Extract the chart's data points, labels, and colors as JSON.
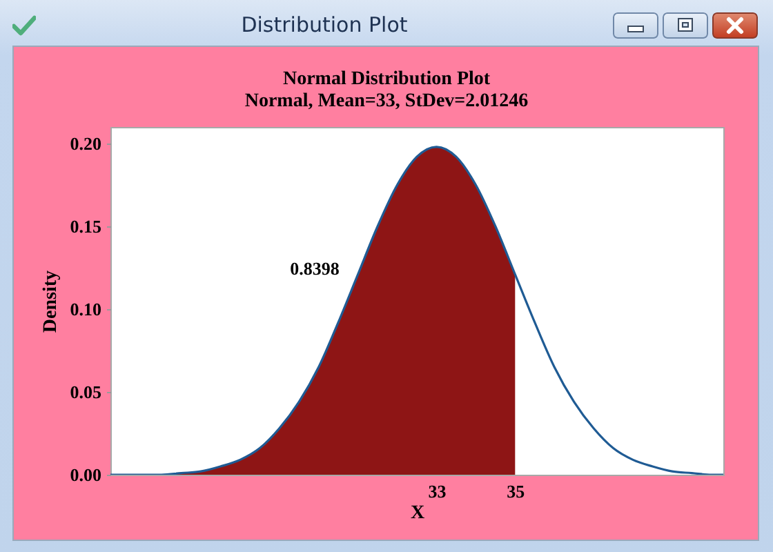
{
  "chart_data": {
    "type": "line",
    "title": "Normal Distribution Plot",
    "subtitle": "Normal, Mean=33, StDev=2.01246",
    "xlabel": "X",
    "ylabel": "Density",
    "xlim": [
      24.7,
      40.3
    ],
    "xticks": [
      33,
      35
    ],
    "ylim": [
      0,
      0.21
    ],
    "yticks": [
      {
        "value": 0,
        "label": "0.00"
      },
      {
        "value": 0.05,
        "label": "0.05"
      },
      {
        "value": 0.1,
        "label": "0.10"
      },
      {
        "value": 0.15,
        "label": "0.15"
      },
      {
        "value": 0.2,
        "label": "0.20"
      }
    ],
    "series": [
      {
        "type": "area",
        "color": "#8e1515",
        "x": [
          24.7,
          25,
          25.5,
          26,
          26.5,
          27,
          27.5,
          28,
          28.5,
          29,
          29.5,
          30,
          30.5,
          31,
          31.5,
          32,
          32.5,
          33,
          33.5,
          34,
          34.5,
          35
        ],
        "values": [
          0.0,
          0.0,
          0.0,
          0.0,
          0.001,
          0.002,
          0.005,
          0.009,
          0.016,
          0.028,
          0.044,
          0.065,
          0.092,
          0.121,
          0.15,
          0.175,
          0.192,
          0.198,
          0.192,
          0.175,
          0.15,
          0.121
        ]
      },
      {
        "color": "#1f5b94",
        "x": [
          24.7,
          25,
          25.5,
          26,
          26.5,
          27,
          27.5,
          28,
          28.5,
          29,
          29.5,
          30,
          30.5,
          31,
          31.5,
          32,
          32.5,
          33,
          33.5,
          34,
          34.5,
          35,
          35.5,
          36,
          36.5,
          37,
          37.5,
          38,
          38.5,
          39,
          39.5,
          40,
          40.3
        ],
        "values": [
          0.0,
          0.0,
          0.0,
          0.0,
          0.001,
          0.002,
          0.005,
          0.009,
          0.016,
          0.028,
          0.044,
          0.065,
          0.092,
          0.121,
          0.15,
          0.175,
          0.192,
          0.198,
          0.192,
          0.175,
          0.15,
          0.121,
          0.092,
          0.065,
          0.044,
          0.028,
          0.016,
          0.009,
          0.005,
          0.002,
          0.001,
          0.0,
          0.0
        ]
      }
    ],
    "annotations": [
      "Distribution Plot",
      "0.8398"
    ]
  }
}
